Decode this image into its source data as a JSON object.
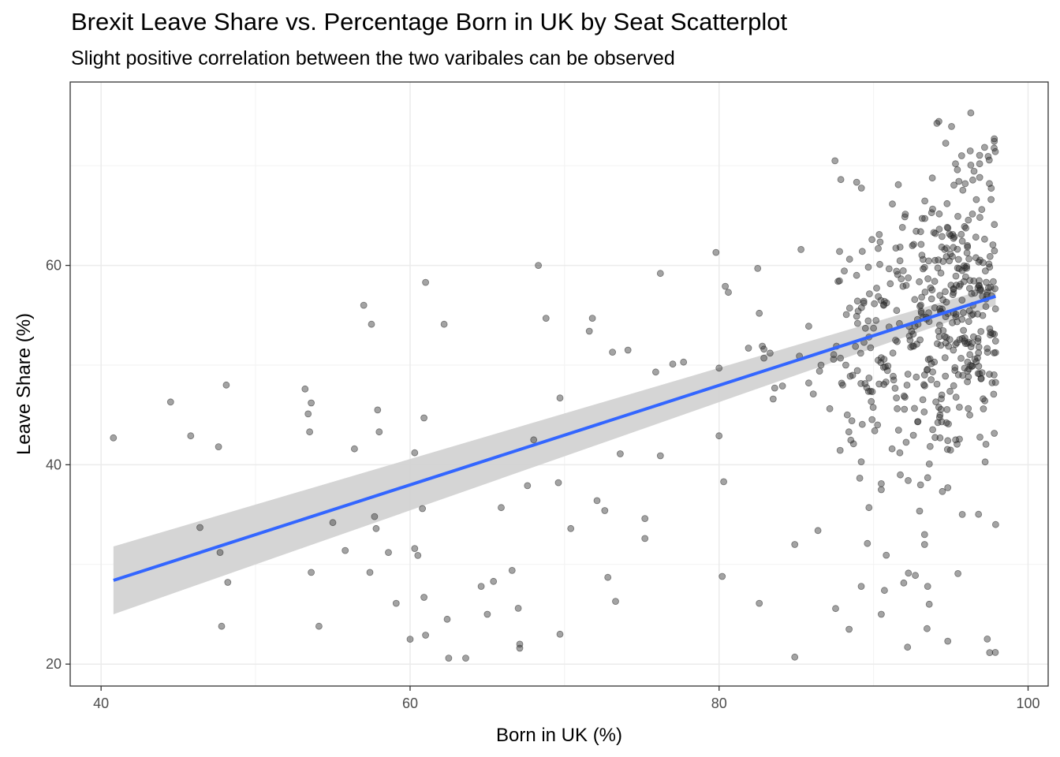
{
  "chart_data": {
    "type": "scatter",
    "title": "Brexit Leave Share vs. Percentage Born in UK by Seat Scatterplot",
    "subtitle": "Slight positive correlation between the two varibales can be observed",
    "xlabel": "Born in UK (%)",
    "ylabel": "Leave Share (%)",
    "xlim": [
      38,
      101.3
    ],
    "ylim": [
      17.8,
      78.4
    ],
    "x_ticks": [
      40,
      60,
      80,
      100
    ],
    "y_ticks": [
      20,
      40,
      60
    ],
    "grid": true,
    "legend": "none",
    "point_color": "#333333",
    "line_color": "#3366FF",
    "ribbon_color": "#d3d3d3",
    "trend_line": {
      "x": [
        40.8,
        97.9
      ],
      "y": [
        28.4,
        56.9
      ]
    },
    "confidence_band": {
      "x": [
        40.8,
        97.9
      ],
      "lower": [
        25.0,
        56.0
      ],
      "upper": [
        31.8,
        57.9
      ]
    },
    "points": [
      [
        40.8,
        42.7
      ],
      [
        44.5,
        46.3
      ],
      [
        45.8,
        42.9
      ],
      [
        46.4,
        33.7
      ],
      [
        47.6,
        41.8
      ],
      [
        47.7,
        31.2
      ],
      [
        47.8,
        23.8
      ],
      [
        48.1,
        48.0
      ],
      [
        48.2,
        28.2
      ],
      [
        53.2,
        47.6
      ],
      [
        53.4,
        45.1
      ],
      [
        53.5,
        43.3
      ],
      [
        53.6,
        46.2
      ],
      [
        53.6,
        29.2
      ],
      [
        54.1,
        23.8
      ],
      [
        55.0,
        34.2
      ],
      [
        55.8,
        31.4
      ],
      [
        56.4,
        41.6
      ],
      [
        57.0,
        56.0
      ],
      [
        57.4,
        29.2
      ],
      [
        57.5,
        54.1
      ],
      [
        57.7,
        34.8
      ],
      [
        57.8,
        33.6
      ],
      [
        57.9,
        45.5
      ],
      [
        58.0,
        43.3
      ],
      [
        58.6,
        31.2
      ],
      [
        59.1,
        26.1
      ],
      [
        60.0,
        22.5
      ],
      [
        60.3,
        41.2
      ],
      [
        60.3,
        31.6
      ],
      [
        60.5,
        30.9
      ],
      [
        60.8,
        35.6
      ],
      [
        60.9,
        44.7
      ],
      [
        60.9,
        26.7
      ],
      [
        61.0,
        58.3
      ],
      [
        61.0,
        22.9
      ],
      [
        62.2,
        54.1
      ],
      [
        62.4,
        24.5
      ],
      [
        62.5,
        20.6
      ],
      [
        63.6,
        20.6
      ],
      [
        64.6,
        27.8
      ],
      [
        65.0,
        25.0
      ],
      [
        65.4,
        28.3
      ],
      [
        65.9,
        35.7
      ],
      [
        66.6,
        29.4
      ],
      [
        67.0,
        25.6
      ],
      [
        67.1,
        22.0
      ],
      [
        67.1,
        21.6
      ],
      [
        67.6,
        37.9
      ],
      [
        68.0,
        42.5
      ],
      [
        68.3,
        60.0
      ],
      [
        68.8,
        54.7
      ],
      [
        69.6,
        38.2
      ],
      [
        69.7,
        46.7
      ],
      [
        69.7,
        23.0
      ],
      [
        70.4,
        33.6
      ],
      [
        71.6,
        53.4
      ],
      [
        71.8,
        54.7
      ],
      [
        72.1,
        36.4
      ],
      [
        72.6,
        35.4
      ],
      [
        72.8,
        28.7
      ],
      [
        73.1,
        51.3
      ],
      [
        73.3,
        26.3
      ],
      [
        73.6,
        41.1
      ],
      [
        74.1,
        51.5
      ],
      [
        75.2,
        34.6
      ],
      [
        75.2,
        32.6
      ],
      [
        75.9,
        49.3
      ],
      [
        76.2,
        59.2
      ],
      [
        76.2,
        40.9
      ],
      [
        77.0,
        50.1
      ],
      [
        77.7,
        50.3
      ],
      [
        79.8,
        61.3
      ],
      [
        80.0,
        49.7
      ],
      [
        80.0,
        42.9
      ],
      [
        80.2,
        28.8
      ],
      [
        80.3,
        38.3
      ],
      [
        80.4,
        57.9
      ],
      [
        80.6,
        57.3
      ],
      [
        81.9,
        51.7
      ],
      [
        82.5,
        59.7
      ],
      [
        82.6,
        26.1
      ],
      [
        82.6,
        55.2
      ],
      [
        82.8,
        51.9
      ],
      [
        82.9,
        51.6
      ],
      [
        82.9,
        50.7
      ],
      [
        83.3,
        51.2
      ],
      [
        83.5,
        46.6
      ],
      [
        83.6,
        47.7
      ],
      [
        84.1,
        47.9
      ],
      [
        84.9,
        32.0
      ],
      [
        84.9,
        20.7
      ],
      [
        85.2,
        50.9
      ],
      [
        85.3,
        61.6
      ],
      [
        85.8,
        53.9
      ],
      [
        85.8,
        48.2
      ],
      [
        86.1,
        47.1
      ],
      [
        86.4,
        33.4
      ],
      [
        86.5,
        49.4
      ],
      [
        86.6,
        50.0
      ],
      [
        87.5,
        70.5
      ],
      [
        87.6,
        51.9
      ],
      [
        87.7,
        58.4
      ],
      [
        87.8,
        61.4
      ],
      [
        88.0,
        48.0
      ],
      [
        88.2,
        50.0
      ],
      [
        88.3,
        45.0
      ],
      [
        88.4,
        43.3
      ],
      [
        88.7,
        42.1
      ],
      [
        88.9,
        59.0
      ],
      [
        89.2,
        40.3
      ],
      [
        89.2,
        27.8
      ],
      [
        89.6,
        32.1
      ],
      [
        89.7,
        48.7
      ],
      [
        89.7,
        35.7
      ],
      [
        90.0,
        53.7
      ],
      [
        90.3,
        61.7
      ],
      [
        90.4,
        60.1
      ],
      [
        90.5,
        38.1
      ],
      [
        90.5,
        37.5
      ],
      [
        90.5,
        25.0
      ],
      [
        90.7,
        56.4
      ],
      [
        90.7,
        27.4
      ],
      [
        90.8,
        48.3
      ],
      [
        91.2,
        41.6
      ],
      [
        91.3,
        48.5
      ],
      [
        91.6,
        68.1
      ],
      [
        91.7,
        41.2
      ],
      [
        91.9,
        57.9
      ],
      [
        92.2,
        21.7
      ],
      [
        92.4,
        51.8
      ],
      [
        92.6,
        51.9
      ],
      [
        92.8,
        52.1
      ],
      [
        93.0,
        55.9
      ],
      [
        93.2,
        60.6
      ],
      [
        93.3,
        59.8
      ],
      [
        93.3,
        33.0
      ],
      [
        93.3,
        32.0
      ],
      [
        93.5,
        38.7
      ],
      [
        93.5,
        27.8
      ],
      [
        93.6,
        26.0
      ],
      [
        93.9,
        63.3
      ],
      [
        94.0,
        63.2
      ],
      [
        94.2,
        53.4
      ],
      [
        94.3,
        45.0
      ],
      [
        94.3,
        42.7
      ],
      [
        94.5,
        60.4
      ],
      [
        94.6,
        61.6
      ],
      [
        94.8,
        22.3
      ],
      [
        94.8,
        37.7
      ],
      [
        95.0,
        63.0
      ],
      [
        95.1,
        60.9
      ],
      [
        95.3,
        70.2
      ]
    ],
    "dense_cluster": {
      "x_range": [
        86.8,
        97.9
      ],
      "y_range": [
        21.0,
        75.6
      ],
      "count": 430
    }
  }
}
